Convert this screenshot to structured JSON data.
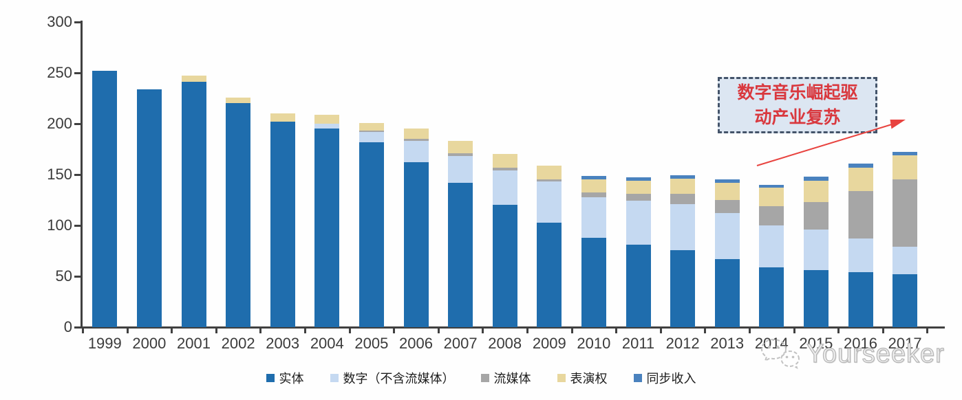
{
  "chart_data": {
    "type": "bar",
    "stacked": true,
    "categories": [
      "1999",
      "2000",
      "2001",
      "2002",
      "2003",
      "2004",
      "2005",
      "2006",
      "2007",
      "2008",
      "2009",
      "2010",
      "2011",
      "2012",
      "2013",
      "2014",
      "2015",
      "2016",
      "2017"
    ],
    "series": [
      {
        "name": "实体",
        "color": "#1F6DAD",
        "values": [
          252,
          234,
          241,
          220,
          202,
          195,
          182,
          162,
          142,
          120,
          103,
          88,
          81,
          76,
          67,
          59,
          56,
          54,
          52
        ]
      },
      {
        "name": "数字（不含流媒体）",
        "color": "#C5D9F1",
        "values": [
          0,
          0,
          0,
          0,
          0,
          5,
          10,
          21,
          26,
          34,
          40,
          40,
          43,
          45,
          45,
          41,
          40,
          33,
          27
        ]
      },
      {
        "name": "流媒体",
        "color": "#A6A6A6",
        "values": [
          0,
          0,
          0,
          0,
          0,
          0,
          1,
          2,
          3,
          3,
          2.5,
          4.5,
          7,
          10,
          13,
          19,
          27,
          47,
          66
        ]
      },
      {
        "name": "表演权",
        "color": "#E8D79E",
        "values": [
          0,
          0,
          6,
          6,
          8,
          9,
          8,
          10,
          12,
          13,
          13.5,
          13,
          13,
          15,
          17,
          18,
          21,
          23,
          24
        ]
      },
      {
        "name": "同步收入",
        "color": "#4A82BE",
        "values": [
          0,
          0,
          0,
          0,
          0,
          0,
          0,
          0,
          0,
          0,
          0,
          3,
          3,
          3,
          3,
          3,
          4,
          4,
          3.5
        ]
      }
    ],
    "title": "",
    "xlabel": "",
    "ylabel": "",
    "ylim": [
      0,
      300
    ],
    "yticks": [
      0,
      50,
      100,
      150,
      200,
      250,
      300
    ],
    "grid": false,
    "legend_position": "bottom"
  },
  "annotation": {
    "line1": "数字音乐崛起驱",
    "line2": "动产业复苏",
    "fill_color": "#DCE6F2",
    "border_color": "#44546A",
    "text_color": "#D9383E",
    "arrow_color": "#E8433F"
  },
  "watermark": {
    "text": "Yourseeker",
    "icon": "wechat-chat-bubbles-icon",
    "color": "#C4C4C4"
  }
}
